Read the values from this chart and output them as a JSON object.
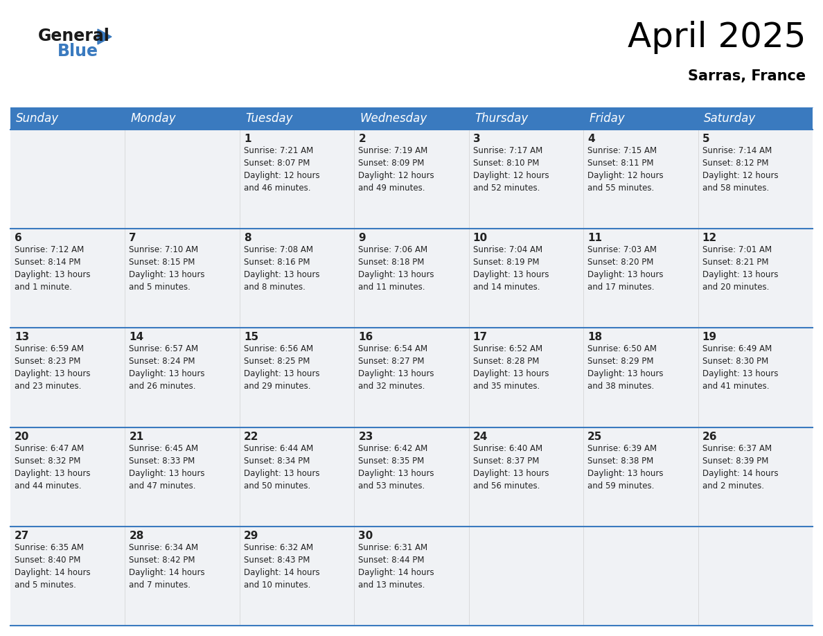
{
  "title": "April 2025",
  "subtitle": "Sarras, France",
  "header_bg": "#3a7abf",
  "header_text": "#ffffff",
  "day_names": [
    "Sunday",
    "Monday",
    "Tuesday",
    "Wednesday",
    "Thursday",
    "Friday",
    "Saturday"
  ],
  "separator_color": "#3a7abf",
  "cell_bg": "#f0f2f5",
  "text_color": "#222222",
  "weeks": [
    [
      {
        "day": null,
        "info": null
      },
      {
        "day": null,
        "info": null
      },
      {
        "day": "1",
        "info": "Sunrise: 7:21 AM\nSunset: 8:07 PM\nDaylight: 12 hours\nand 46 minutes."
      },
      {
        "day": "2",
        "info": "Sunrise: 7:19 AM\nSunset: 8:09 PM\nDaylight: 12 hours\nand 49 minutes."
      },
      {
        "day": "3",
        "info": "Sunrise: 7:17 AM\nSunset: 8:10 PM\nDaylight: 12 hours\nand 52 minutes."
      },
      {
        "day": "4",
        "info": "Sunrise: 7:15 AM\nSunset: 8:11 PM\nDaylight: 12 hours\nand 55 minutes."
      },
      {
        "day": "5",
        "info": "Sunrise: 7:14 AM\nSunset: 8:12 PM\nDaylight: 12 hours\nand 58 minutes."
      }
    ],
    [
      {
        "day": "6",
        "info": "Sunrise: 7:12 AM\nSunset: 8:14 PM\nDaylight: 13 hours\nand 1 minute."
      },
      {
        "day": "7",
        "info": "Sunrise: 7:10 AM\nSunset: 8:15 PM\nDaylight: 13 hours\nand 5 minutes."
      },
      {
        "day": "8",
        "info": "Sunrise: 7:08 AM\nSunset: 8:16 PM\nDaylight: 13 hours\nand 8 minutes."
      },
      {
        "day": "9",
        "info": "Sunrise: 7:06 AM\nSunset: 8:18 PM\nDaylight: 13 hours\nand 11 minutes."
      },
      {
        "day": "10",
        "info": "Sunrise: 7:04 AM\nSunset: 8:19 PM\nDaylight: 13 hours\nand 14 minutes."
      },
      {
        "day": "11",
        "info": "Sunrise: 7:03 AM\nSunset: 8:20 PM\nDaylight: 13 hours\nand 17 minutes."
      },
      {
        "day": "12",
        "info": "Sunrise: 7:01 AM\nSunset: 8:21 PM\nDaylight: 13 hours\nand 20 minutes."
      }
    ],
    [
      {
        "day": "13",
        "info": "Sunrise: 6:59 AM\nSunset: 8:23 PM\nDaylight: 13 hours\nand 23 minutes."
      },
      {
        "day": "14",
        "info": "Sunrise: 6:57 AM\nSunset: 8:24 PM\nDaylight: 13 hours\nand 26 minutes."
      },
      {
        "day": "15",
        "info": "Sunrise: 6:56 AM\nSunset: 8:25 PM\nDaylight: 13 hours\nand 29 minutes."
      },
      {
        "day": "16",
        "info": "Sunrise: 6:54 AM\nSunset: 8:27 PM\nDaylight: 13 hours\nand 32 minutes."
      },
      {
        "day": "17",
        "info": "Sunrise: 6:52 AM\nSunset: 8:28 PM\nDaylight: 13 hours\nand 35 minutes."
      },
      {
        "day": "18",
        "info": "Sunrise: 6:50 AM\nSunset: 8:29 PM\nDaylight: 13 hours\nand 38 minutes."
      },
      {
        "day": "19",
        "info": "Sunrise: 6:49 AM\nSunset: 8:30 PM\nDaylight: 13 hours\nand 41 minutes."
      }
    ],
    [
      {
        "day": "20",
        "info": "Sunrise: 6:47 AM\nSunset: 8:32 PM\nDaylight: 13 hours\nand 44 minutes."
      },
      {
        "day": "21",
        "info": "Sunrise: 6:45 AM\nSunset: 8:33 PM\nDaylight: 13 hours\nand 47 minutes."
      },
      {
        "day": "22",
        "info": "Sunrise: 6:44 AM\nSunset: 8:34 PM\nDaylight: 13 hours\nand 50 minutes."
      },
      {
        "day": "23",
        "info": "Sunrise: 6:42 AM\nSunset: 8:35 PM\nDaylight: 13 hours\nand 53 minutes."
      },
      {
        "day": "24",
        "info": "Sunrise: 6:40 AM\nSunset: 8:37 PM\nDaylight: 13 hours\nand 56 minutes."
      },
      {
        "day": "25",
        "info": "Sunrise: 6:39 AM\nSunset: 8:38 PM\nDaylight: 13 hours\nand 59 minutes."
      },
      {
        "day": "26",
        "info": "Sunrise: 6:37 AM\nSunset: 8:39 PM\nDaylight: 14 hours\nand 2 minutes."
      }
    ],
    [
      {
        "day": "27",
        "info": "Sunrise: 6:35 AM\nSunset: 8:40 PM\nDaylight: 14 hours\nand 5 minutes."
      },
      {
        "day": "28",
        "info": "Sunrise: 6:34 AM\nSunset: 8:42 PM\nDaylight: 14 hours\nand 7 minutes."
      },
      {
        "day": "29",
        "info": "Sunrise: 6:32 AM\nSunset: 8:43 PM\nDaylight: 14 hours\nand 10 minutes."
      },
      {
        "day": "30",
        "info": "Sunrise: 6:31 AM\nSunset: 8:44 PM\nDaylight: 14 hours\nand 13 minutes."
      },
      {
        "day": null,
        "info": null
      },
      {
        "day": null,
        "info": null
      },
      {
        "day": null,
        "info": null
      }
    ]
  ],
  "title_fontsize": 36,
  "subtitle_fontsize": 15,
  "header_fontsize": 12,
  "day_num_fontsize": 11,
  "info_fontsize": 8.5
}
